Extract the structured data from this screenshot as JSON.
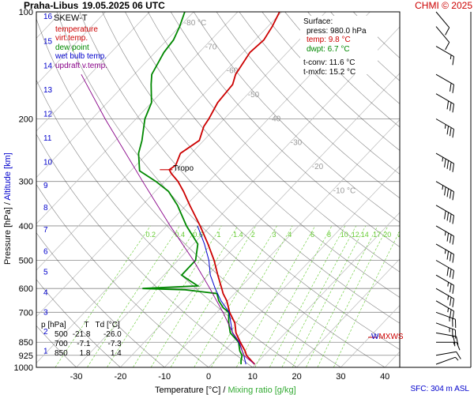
{
  "header": {
    "station": "Praha-Libus",
    "datetime": "19.05.2025 06 UTC",
    "copyright": "CHMI © 2025"
  },
  "legend": {
    "title": "SKEW-T",
    "items": [
      {
        "label": "temperature",
        "color": "#cc0000"
      },
      {
        "label": "virt.temp.",
        "color": "#cc0000"
      },
      {
        "label": "dew point",
        "color": "#008800"
      },
      {
        "label": "wet bulb temp.",
        "color": "#0000cc"
      },
      {
        "label": "updraft v.temp.",
        "color": "#880088"
      }
    ]
  },
  "surface": {
    "title": "Surface:",
    "press": "press: 980.0 hPa",
    "temp": "temp: 9.8 °C",
    "dwpt": "dwpt: 6.7 °C",
    "tconv": "t-conv: 11.6 °C",
    "tmxfc": "t-mxfc: 15.2 °C"
  },
  "levels_table": {
    "headers": [
      "p [hPa]",
      "T",
      "Td [°C]"
    ],
    "rows": [
      [
        "500",
        "-21.8",
        "-26.0"
      ],
      [
        "700",
        "-7.1",
        "-7.3"
      ],
      [
        "850",
        "1.8",
        "1.4"
      ]
    ]
  },
  "annotations": {
    "tropopause": "Tropo",
    "max_wind": "MXWS",
    "max_wind_prefix": "W",
    "sfc_altitude": "SFC: 304 m ASL"
  },
  "colors": {
    "temperature": "#cc0000",
    "dewpoint": "#008800",
    "wetbulb": "#0000cc",
    "updraft": "#880088",
    "isobar": "#888888",
    "isotherm": "#888888",
    "dry_adiabat": "#333333",
    "mixing_ratio": "#66cc33",
    "altitude": "#0000cc"
  },
  "chart_data": {
    "type": "line",
    "xlabel": "Temperature [°C]",
    "xlabel_sep": "/",
    "xlabel2": "Mixing ratio [g/kg]",
    "ylabel": "Pressure [hPa]",
    "ylabel_sep": "/",
    "ylabel2": "Altitude [km]",
    "x_ticks": [
      -30,
      -20,
      -10,
      0,
      10,
      20,
      30,
      40
    ],
    "xlim": [
      -37,
      45
    ],
    "y_scale": "log",
    "ylim": [
      1000,
      100
    ],
    "pressure_ticks": [
      1000,
      925,
      850,
      700,
      600,
      500,
      400,
      300,
      200,
      100
    ],
    "altitude_ticks_km": [
      1,
      2,
      3,
      4,
      5,
      6,
      7,
      8,
      9,
      10,
      11,
      12,
      13,
      14,
      15,
      16
    ],
    "altitude_pressure_hpa": [
      900,
      795,
      701,
      616,
      540,
      472,
      411,
      356,
      308,
      265,
      227,
      194,
      166,
      142,
      121,
      103
    ],
    "isotherm_labels": [
      {
        "value": -80,
        "text": "-80 °C"
      },
      {
        "value": -70,
        "text": "-70"
      },
      {
        "value": -60,
        "text": "-60"
      },
      {
        "value": -50,
        "text": "-50"
      },
      {
        "value": -40,
        "text": "-40"
      },
      {
        "value": -30,
        "text": "-30"
      },
      {
        "value": -20,
        "text": "-20"
      },
      {
        "value": -10,
        "text": "-10 °C"
      }
    ],
    "mixing_ratio_lines": [
      "0.2",
      "0.4",
      "0.6",
      "1",
      "1.4",
      "2",
      "3",
      "4",
      "6",
      "8",
      "10",
      "12",
      "14",
      "17",
      "20",
      "25"
    ],
    "series": [
      {
        "name": "temperature",
        "points": [
          [
            980,
            9.8
          ],
          [
            960,
            8.4
          ],
          [
            925,
            6.0
          ],
          [
            900,
            4.8
          ],
          [
            850,
            1.8
          ],
          [
            800,
            -1.2
          ],
          [
            750,
            -3.6
          ],
          [
            700,
            -7.1
          ],
          [
            680,
            -8.3
          ],
          [
            650,
            -10.2
          ],
          [
            620,
            -12.6
          ],
          [
            600,
            -14.0
          ],
          [
            550,
            -17.8
          ],
          [
            500,
            -21.8
          ],
          [
            450,
            -26.7
          ],
          [
            400,
            -32.4
          ],
          [
            350,
            -39.2
          ],
          [
            320,
            -43.6
          ],
          [
            300,
            -47.0
          ],
          [
            285,
            -50.2
          ],
          [
            278,
            -51.5
          ],
          [
            270,
            -51.0
          ],
          [
            250,
            -52.5
          ],
          [
            230,
            -51.0
          ],
          [
            210,
            -53.0
          ],
          [
            200,
            -53.5
          ],
          [
            180,
            -55.0
          ],
          [
            160,
            -55.5
          ],
          [
            150,
            -57.0
          ],
          [
            130,
            -58.5
          ],
          [
            120,
            -58.0
          ],
          [
            110,
            -59.0
          ],
          [
            100,
            -60.5
          ]
        ]
      },
      {
        "name": "dew point",
        "points": [
          [
            980,
            6.7
          ],
          [
            960,
            6.0
          ],
          [
            925,
            5.0
          ],
          [
            900,
            3.6
          ],
          [
            850,
            1.4
          ],
          [
            800,
            -2.5
          ],
          [
            750,
            -5.0
          ],
          [
            700,
            -7.3
          ],
          [
            680,
            -9.5
          ],
          [
            650,
            -12.0
          ],
          [
            620,
            -14.0
          ],
          [
            605,
            -22.0
          ],
          [
            600,
            -32.0
          ],
          [
            590,
            -20.0
          ],
          [
            570,
            -23.0
          ],
          [
            550,
            -26.0
          ],
          [
            500,
            -26.0
          ],
          [
            450,
            -29.0
          ],
          [
            400,
            -35.5
          ],
          [
            350,
            -42.0
          ],
          [
            320,
            -47.0
          ],
          [
            300,
            -52.0
          ],
          [
            280,
            -58.0
          ],
          [
            250,
            -62.0
          ],
          [
            230,
            -64.0
          ],
          [
            200,
            -68.0
          ],
          [
            180,
            -70.0
          ],
          [
            160,
            -74.0
          ],
          [
            150,
            -76.0
          ],
          [
            130,
            -78.0
          ],
          [
            120,
            -78.5
          ],
          [
            110,
            -80.0
          ],
          [
            100,
            -82.0
          ]
        ]
      },
      {
        "name": "wet bulb temp.",
        "points": [
          [
            980,
            7.8
          ],
          [
            925,
            5.4
          ],
          [
            850,
            1.5
          ],
          [
            800,
            -2.0
          ],
          [
            700,
            -7.2
          ],
          [
            650,
            -11.5
          ],
          [
            600,
            -15.5
          ],
          [
            550,
            -19.5
          ],
          [
            500,
            -23.0
          ],
          [
            450,
            -27.5
          ],
          [
            400,
            -33.0
          ]
        ]
      },
      {
        "name": "updraft v.temp.",
        "points": [
          [
            980,
            9.8
          ],
          [
            925,
            5.4
          ],
          [
            850,
            1.6
          ],
          [
            800,
            -1.9
          ],
          [
            700,
            -8.6
          ],
          [
            600,
            -16.7
          ],
          [
            500,
            -26.5
          ],
          [
            400,
            -39.2
          ],
          [
            300,
            -55.0
          ],
          [
            200,
            -77.0
          ],
          [
            150,
            -92.0
          ]
        ]
      }
    ],
    "wind_barbs": [
      {
        "p": 980,
        "dir": 250,
        "speed_kt": 5
      },
      {
        "p": 925,
        "dir": 260,
        "speed_kt": 10
      },
      {
        "p": 850,
        "dir": 270,
        "speed_kt": 15
      },
      {
        "p": 800,
        "dir": 280,
        "speed_kt": 20
      },
      {
        "p": 750,
        "dir": 290,
        "speed_kt": 25
      },
      {
        "p": 700,
        "dir": 290,
        "speed_kt": 25
      },
      {
        "p": 650,
        "dir": 300,
        "speed_kt": 25
      },
      {
        "p": 600,
        "dir": 300,
        "speed_kt": 25
      },
      {
        "p": 550,
        "dir": 300,
        "speed_kt": 25
      },
      {
        "p": 500,
        "dir": 300,
        "speed_kt": 30
      },
      {
        "p": 450,
        "dir": 300,
        "speed_kt": 35
      },
      {
        "p": 400,
        "dir": 300,
        "speed_kt": 35
      },
      {
        "p": 350,
        "dir": 300,
        "speed_kt": 40
      },
      {
        "p": 300,
        "dir": 300,
        "speed_kt": 45
      },
      {
        "p": 250,
        "dir": 300,
        "speed_kt": 45
      },
      {
        "p": 200,
        "dir": 300,
        "speed_kt": 35
      },
      {
        "p": 170,
        "dir": 300,
        "speed_kt": 30
      },
      {
        "p": 150,
        "dir": 300,
        "speed_kt": 20
      },
      {
        "p": 125,
        "dir": 300,
        "speed_kt": 15
      },
      {
        "p": 110,
        "dir": 320,
        "speed_kt": 10
      },
      {
        "p": 100,
        "dir": 320,
        "speed_kt": 10
      }
    ]
  }
}
